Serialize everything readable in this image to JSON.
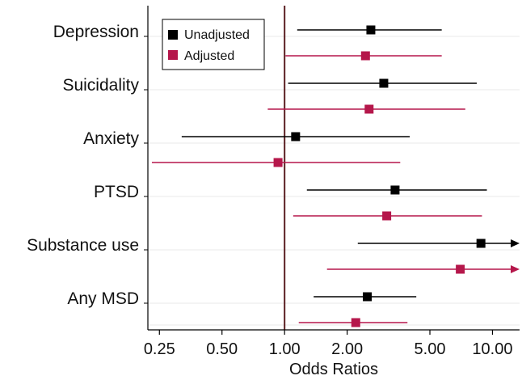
{
  "chart_data": {
    "type": "scatter",
    "subtype": "forest-plot",
    "xscale": "log",
    "xlim": [
      0.22,
      13.5
    ],
    "xticks": [
      0.25,
      0.5,
      1.0,
      2.0,
      5.0,
      10.0
    ],
    "xtick_labels": [
      "0.25",
      "0.50",
      "1.00",
      "2.00",
      "5.00",
      "10.00"
    ],
    "xlabel": "Odds Ratios",
    "reference_line": 1.0,
    "categories": [
      "Depression",
      "Suicidality",
      "Anxiety",
      "PTSD",
      "Substance use",
      "Any MSD"
    ],
    "series": [
      {
        "name": "Unadjusted",
        "color": "#000000",
        "or": [
          2.6,
          3.0,
          1.13,
          3.4,
          8.8,
          2.5
        ],
        "lower": [
          1.15,
          1.04,
          0.32,
          1.28,
          2.25,
          1.38
        ],
        "upper": [
          5.7,
          8.4,
          4.0,
          9.4,
          13.5,
          4.3
        ],
        "arrow_right": [
          false,
          false,
          false,
          false,
          true,
          false
        ]
      },
      {
        "name": "Adjusted",
        "color": "#b5174b",
        "or": [
          2.45,
          2.55,
          0.93,
          3.1,
          7.0,
          2.2
        ],
        "lower": [
          1.01,
          0.83,
          0.23,
          1.1,
          1.6,
          1.17
        ],
        "upper": [
          5.7,
          7.4,
          3.6,
          8.9,
          13.5,
          3.9
        ],
        "arrow_right": [
          false,
          false,
          false,
          false,
          true,
          false
        ]
      }
    ],
    "legend_position": "top-left",
    "grid": "horizontal"
  }
}
